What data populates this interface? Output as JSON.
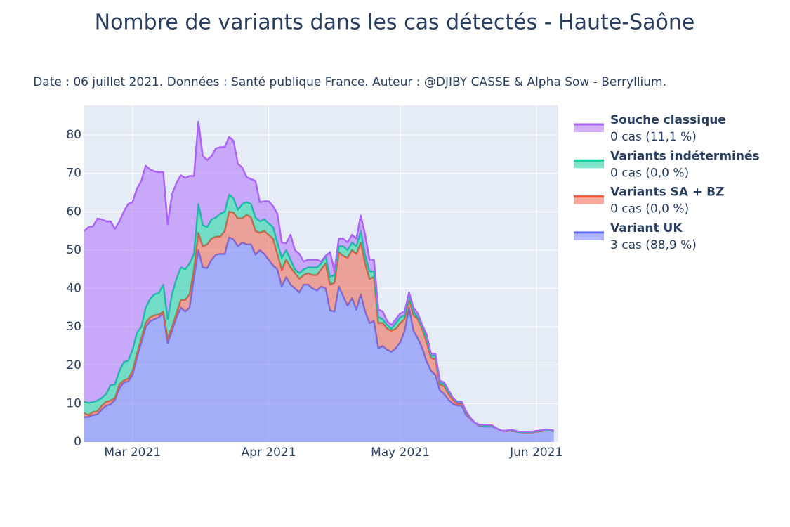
{
  "chart_data": {
    "type": "stacked_area",
    "title": "Nombre de variants dans les cas détectés - Haute-Saône",
    "subtitle": "Date : 06 juillet 2021. Données : Santé publique France. Auteur : @DJIBY CASSE & Alpha Sow - Berryllium.",
    "categories": [
      null,
      null,
      null,
      null,
      null,
      null,
      null,
      null,
      null,
      null,
      null,
      "Mar 2021",
      null,
      null,
      null,
      null,
      null,
      null,
      null,
      null,
      null,
      null,
      null,
      null,
      null,
      null,
      null,
      null,
      null,
      null,
      null,
      null,
      null,
      null,
      null,
      null,
      null,
      null,
      null,
      null,
      null,
      null,
      "Apr 2021",
      null,
      null,
      null,
      null,
      null,
      null,
      null,
      null,
      null,
      null,
      null,
      null,
      null,
      null,
      null,
      null,
      null,
      null,
      null,
      null,
      null,
      null,
      null,
      null,
      null,
      null,
      null,
      null,
      null,
      "May 2021",
      null,
      null,
      null,
      null,
      null,
      null,
      null,
      null,
      null,
      null,
      null,
      null,
      null,
      null,
      null,
      null,
      null,
      null,
      null,
      null,
      null,
      null,
      null,
      null,
      null,
      null,
      null,
      null,
      null,
      null,
      "Jun 2021",
      null,
      null,
      null,
      null
    ],
    "series": [
      {
        "name": "Variant UK",
        "legend_detail": "3 cas (88,9 %)",
        "color": "#636efa",
        "values": [
          6.5,
          6.5,
          7,
          7.2,
          8.5,
          9.5,
          9.8,
          11,
          14,
          15.5,
          15.8,
          17.5,
          22,
          26,
          30,
          31.5,
          32,
          32.5,
          33.5,
          25.8,
          29,
          32.5,
          35,
          34,
          35,
          43,
          50,
          45.5,
          45.3,
          47.5,
          48.8,
          49,
          49,
          53.3,
          52.8,
          51,
          52,
          51.5,
          51.5,
          48.8,
          50,
          49,
          47.5,
          46,
          45,
          40.5,
          43,
          41,
          40,
          39,
          41,
          41,
          40,
          39.5,
          40.5,
          40,
          34.3,
          34,
          40.5,
          38,
          35.5,
          37.5,
          34.5,
          38.5,
          34,
          31,
          31.5,
          24.5,
          25,
          24,
          23.5,
          24.5,
          26,
          29,
          35,
          29,
          27,
          24.5,
          21,
          18.5,
          17.5,
          13.5,
          12.5,
          11,
          10,
          9.5,
          9.5,
          7,
          6,
          5,
          4.2,
          4,
          4,
          4,
          3.5,
          3,
          2.8,
          3,
          2.8,
          2.6,
          2.5,
          2.5,
          2.5,
          2.7,
          2.8,
          3,
          3,
          2.8
        ]
      },
      {
        "name": "Variants SA + BZ",
        "legend_detail": "0 cas (0,0 %)",
        "color": "#ef553b",
        "values": [
          1,
          0.5,
          0.8,
          0.8,
          1,
          1,
          1,
          0.5,
          1,
          0.5,
          0.7,
          1,
          1,
          1,
          1,
          1,
          1,
          0.7,
          0.5,
          1.2,
          1,
          1,
          2,
          3,
          3.5,
          2,
          4.5,
          5.5,
          6.2,
          5.5,
          4.7,
          4.5,
          6,
          6.7,
          7,
          7.3,
          6.3,
          7.7,
          7,
          6.2,
          4.5,
          6,
          6.5,
          7,
          4,
          4.3,
          4.5,
          4.5,
          4,
          3.5,
          2.5,
          3,
          3.5,
          4,
          4.5,
          6.5,
          6.7,
          7.5,
          9,
          10.5,
          12.5,
          12.5,
          14.5,
          13.5,
          12.5,
          11.5,
          11.5,
          6.5,
          6,
          5.5,
          5.5,
          5,
          5,
          3,
          2.5,
          4,
          5,
          5,
          5,
          3.5,
          4,
          1.5,
          2,
          1.5,
          1,
          0.5,
          0.5,
          0.5,
          0,
          0,
          0.1,
          0.2,
          0.2,
          0.2,
          0,
          0,
          0,
          0,
          0,
          0,
          0,
          0,
          0,
          0,
          0,
          0,
          0,
          0
        ]
      },
      {
        "name": "Variants indéterminés",
        "legend_detail": "0 cas (0,0 %)",
        "color": "#00cc96",
        "values": [
          3,
          3.2,
          2.6,
          2.8,
          2,
          2,
          4,
          3.5,
          3.5,
          4.8,
          4.7,
          5.5,
          5.5,
          3,
          4,
          4.8,
          5.5,
          5.6,
          7,
          5,
          8.5,
          9,
          8.5,
          8,
          8,
          4,
          7.5,
          5.5,
          4.5,
          5,
          5,
          6,
          5,
          4.5,
          3.7,
          2.2,
          3.7,
          3.3,
          3.5,
          3.5,
          3,
          3,
          3,
          3,
          3,
          3.2,
          2.5,
          2,
          1,
          1.5,
          1.5,
          1.5,
          2,
          2,
          1.5,
          2,
          2,
          2,
          1.5,
          2.5,
          2,
          2,
          2,
          3,
          2,
          2,
          1.5,
          1.5,
          1,
          1,
          0.5,
          1.5,
          1.5,
          1,
          0.5,
          1,
          0.5,
          0.5,
          1,
          0.5,
          1,
          0.5,
          0.5,
          0.5,
          0.5,
          0.3,
          0.3,
          0.3,
          0.2,
          0,
          0.1,
          0.1,
          0.1,
          0.1,
          0,
          0,
          0.1,
          0.1,
          0.1,
          0,
          0.1,
          0.1,
          0.1,
          0.1,
          0.1,
          0.1,
          0,
          0.1
        ]
      },
      {
        "name": "Souche classique",
        "legend_detail": "0 cas (11,1 %)",
        "color": "#ab63fa",
        "values": [
          44.5,
          45.8,
          45.8,
          47.4,
          46.5,
          45,
          42.7,
          40.5,
          39,
          39.2,
          40.8,
          38.5,
          37.5,
          38,
          37,
          33.7,
          32,
          31.5,
          29.3,
          24.7,
          26,
          25,
          24,
          23.8,
          22.8,
          20.3,
          21.5,
          18,
          17.5,
          16.5,
          18,
          17.3,
          16.8,
          15,
          15,
          12,
          9.5,
          6.5,
          6.5,
          9.5,
          5,
          4.7,
          5.7,
          5.5,
          7.5,
          4,
          1.8,
          6.5,
          5,
          5,
          2,
          2,
          2,
          2,
          0.5,
          0,
          6.5,
          1,
          2,
          2,
          2,
          2,
          2,
          4,
          5.5,
          3,
          3,
          2,
          2,
          1,
          1,
          1,
          1,
          1,
          1,
          1,
          1,
          0.5,
          1,
          0.5,
          0.5,
          0.5,
          0.5,
          0.5,
          0,
          0.2,
          0.2,
          0.2,
          0.1,
          0,
          0.1,
          0.2,
          0.2,
          0,
          0,
          0,
          0,
          0.1,
          0.1,
          0.1,
          0.1,
          0.1,
          0.1,
          0.1,
          0.1,
          0.2,
          0.2,
          0.1
        ]
      }
    ],
    "ylim": [
      0,
      87.7
    ],
    "yticks": [
      0,
      10,
      20,
      30,
      40,
      50,
      60,
      70,
      80
    ],
    "grid": true,
    "legend": "right"
  }
}
